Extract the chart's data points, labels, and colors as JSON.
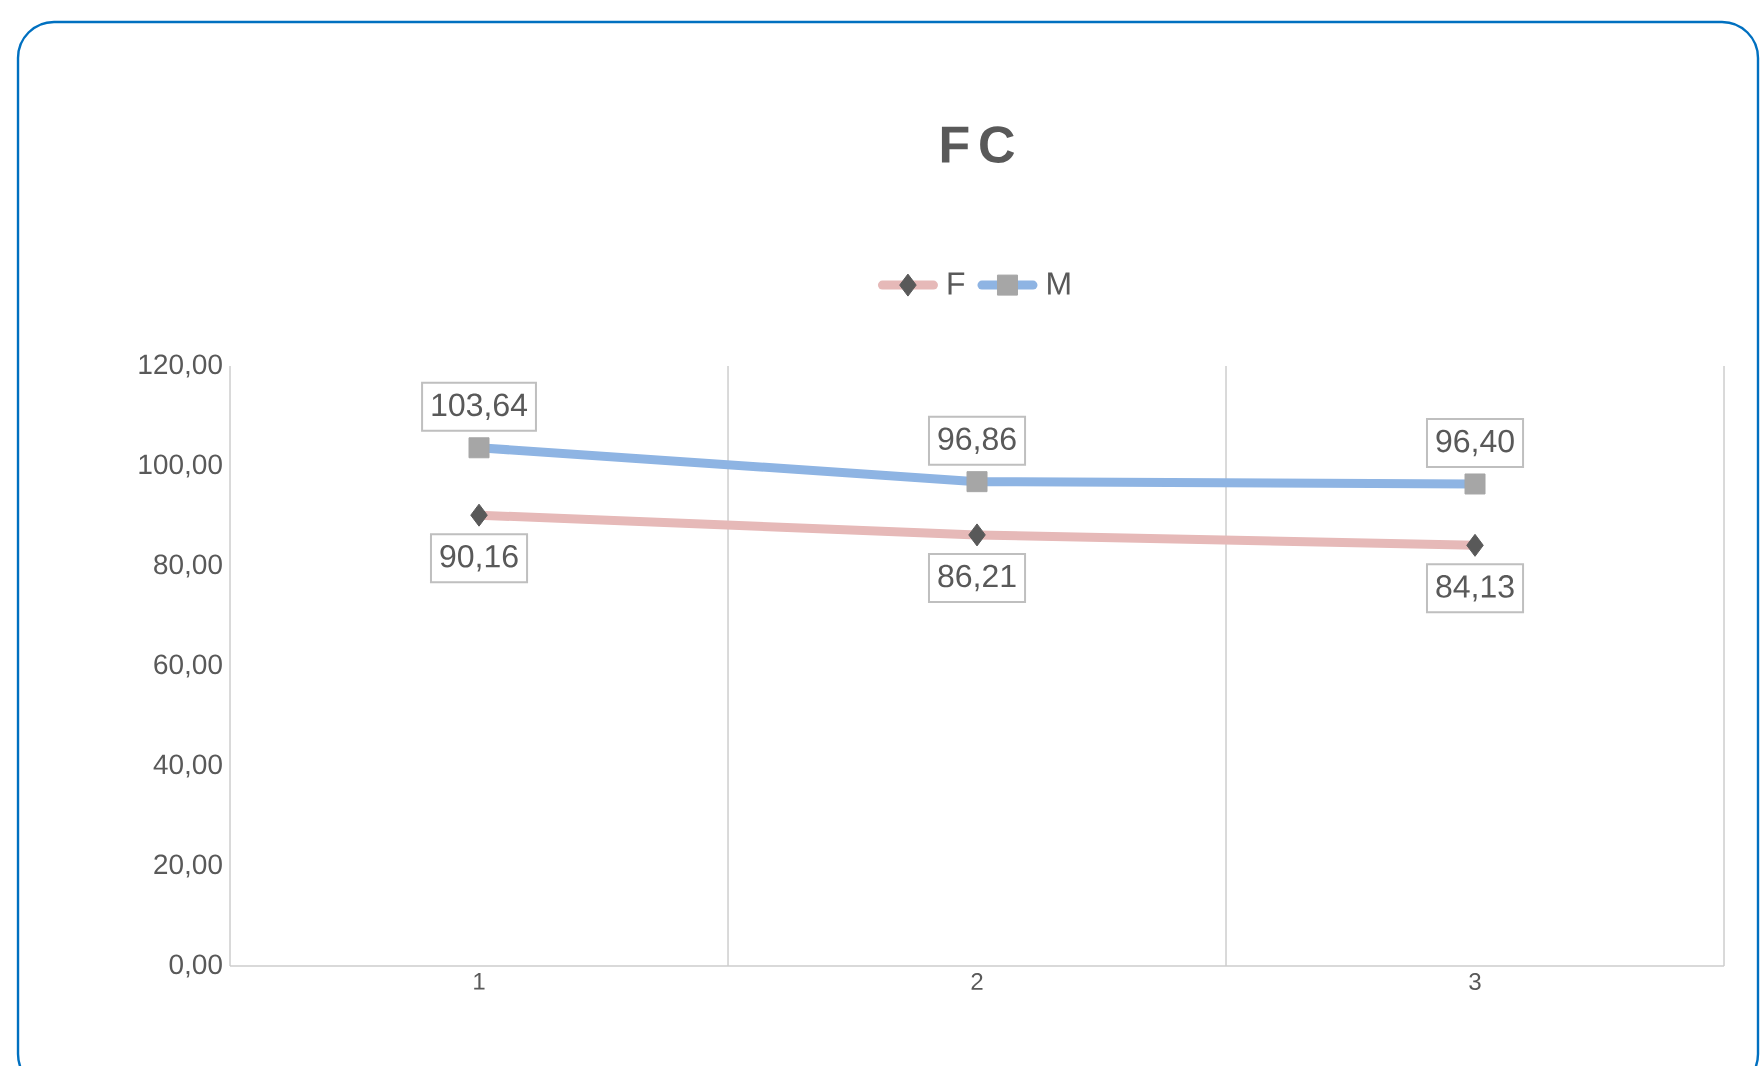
{
  "chart_data": {
    "type": "line",
    "title": "FC",
    "categories": [
      "1",
      "2",
      "3"
    ],
    "series": [
      {
        "name": "F",
        "color": "#e6b9b8",
        "marker": "diamond",
        "values": [
          90.16,
          86.21,
          84.13
        ],
        "value_labels": [
          "90,16",
          "86,21",
          "84,13"
        ]
      },
      {
        "name": "M",
        "color": "#8eb4e3",
        "marker": "square",
        "values": [
          103.64,
          96.86,
          96.4
        ],
        "value_labels": [
          "103,64",
          "96,86",
          "96,40"
        ]
      }
    ],
    "ylim": [
      0,
      120
    ],
    "yticks": [
      {
        "value": 0,
        "label": "0,00"
      },
      {
        "value": 20,
        "label": "20,00"
      },
      {
        "value": 40,
        "label": "40,00"
      },
      {
        "value": 60,
        "label": "60,00"
      },
      {
        "value": 80,
        "label": "80,00"
      },
      {
        "value": 100,
        "label": "100,00"
      },
      {
        "value": 120,
        "label": "120,00"
      }
    ],
    "grid": "x",
    "legend": "top",
    "line_style": "solid"
  }
}
